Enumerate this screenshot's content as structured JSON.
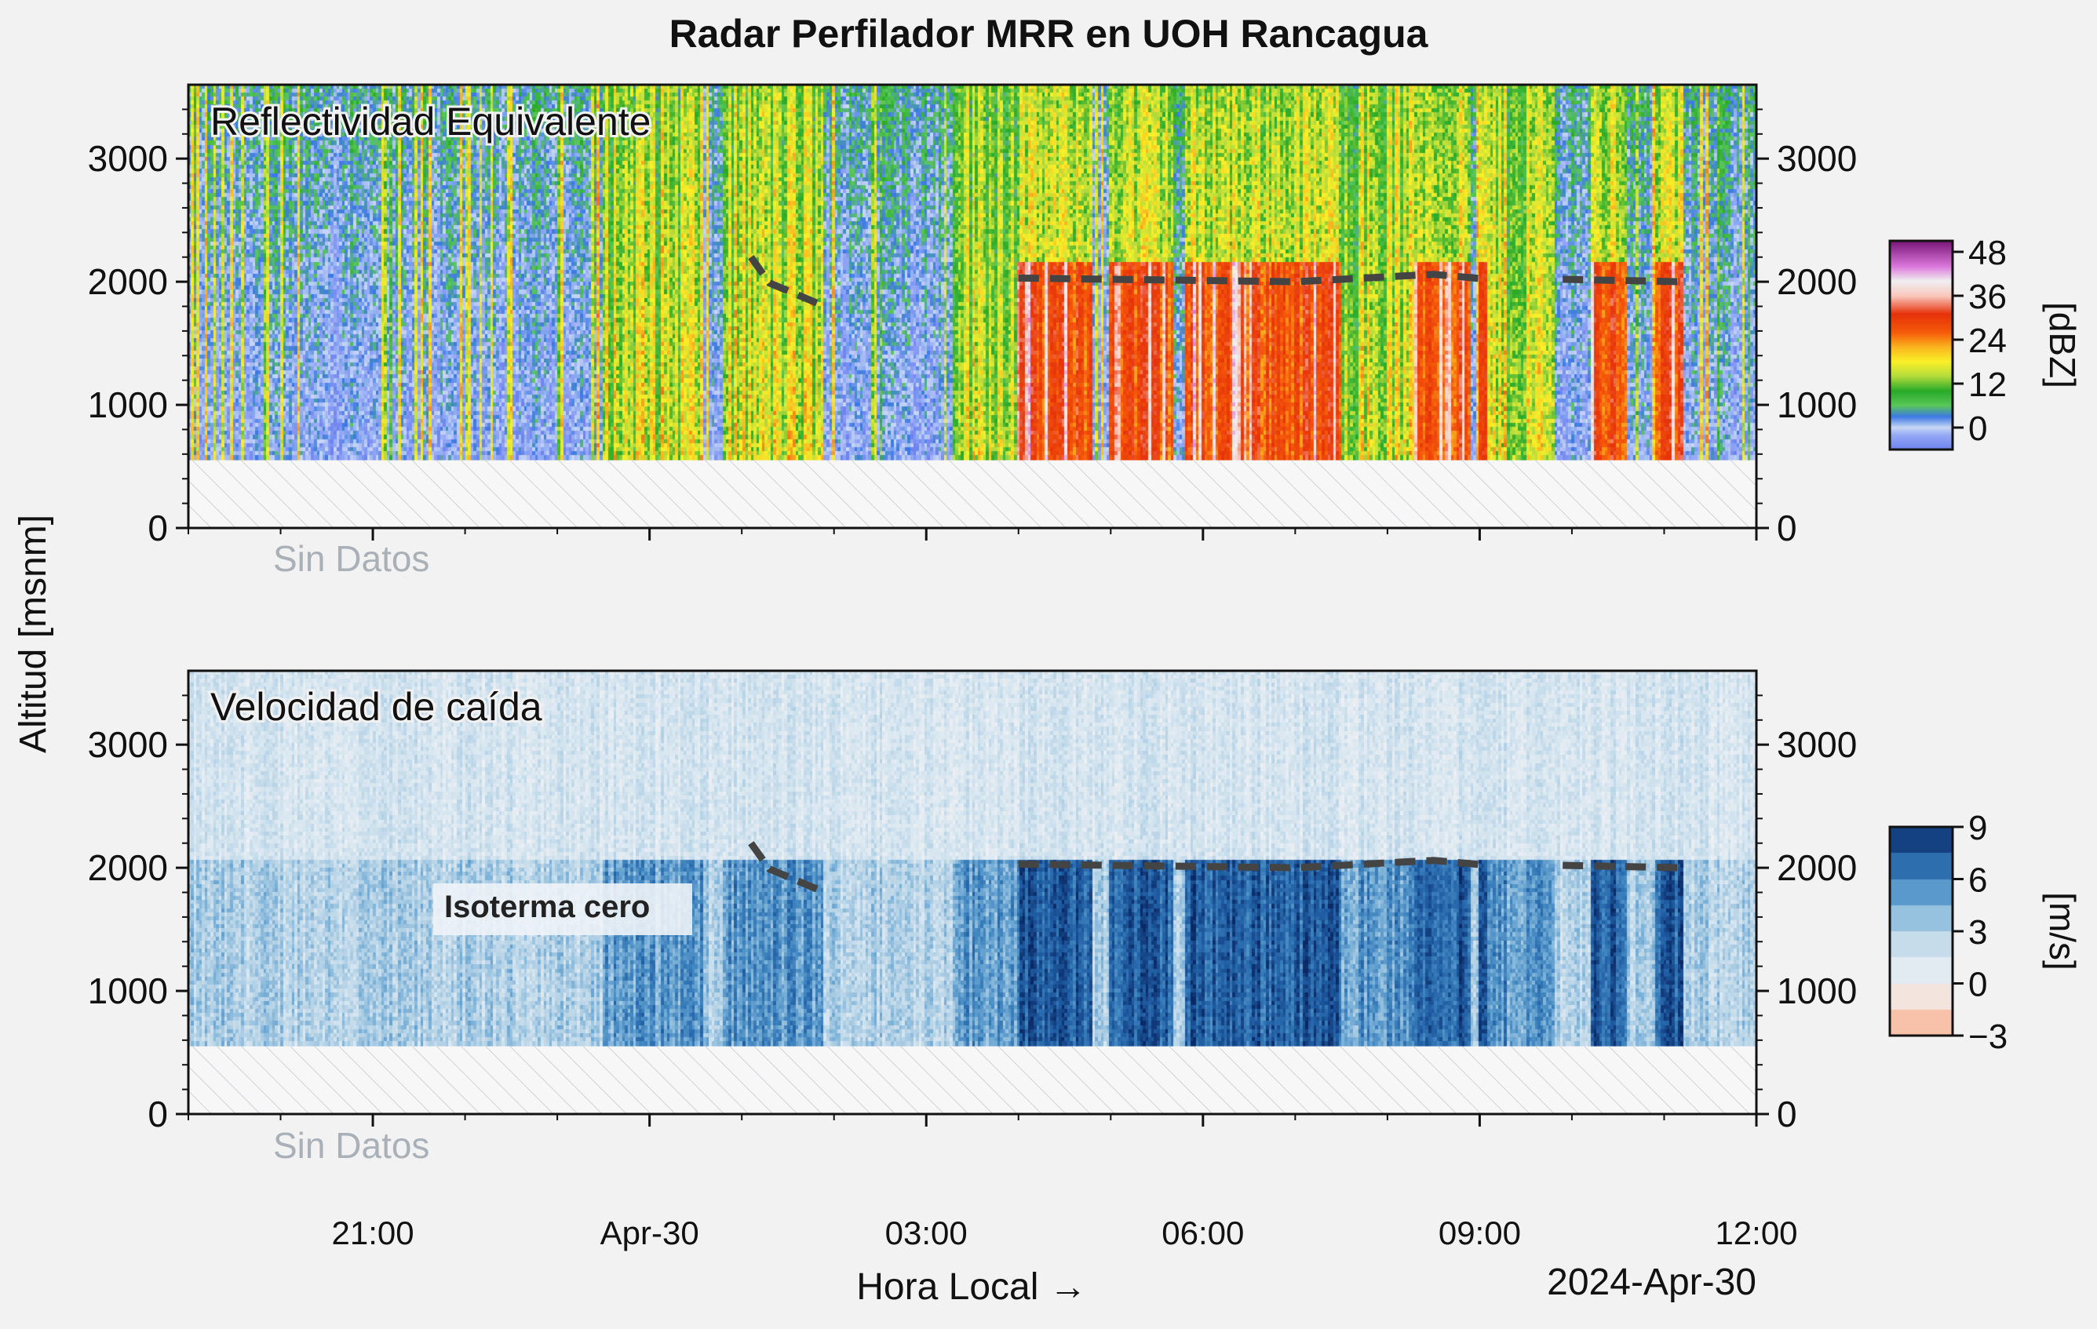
{
  "chart_data": [
    {
      "type": "heatmap",
      "title": "Radar Perfilador MRR en UOH Rancagua",
      "panel_label": "Reflectividad Equivalente",
      "field": "Reflectividad Equivalente",
      "ylabel": "Altitud [msnm]",
      "xlabel": "Hora Local →",
      "date_label": "2024-Apr-30",
      "x_range_hours": [
        -5,
        12
      ],
      "ylim": [
        0,
        3600
      ],
      "y_ticks": [
        0,
        1000,
        2000,
        3000
      ],
      "y_tick_labels": [
        "0",
        "1000",
        "2000",
        "3000"
      ],
      "x_ticks_hours": [
        -3,
        0,
        3,
        6,
        9,
        12
      ],
      "x_tick_labels": [
        "21:00",
        "Apr-30",
        "03:00",
        "06:00",
        "09:00",
        "12:00"
      ],
      "no_data_below_m": 550,
      "no_data_label": "Sin Datos",
      "colorbar": {
        "label": "[dBZ]",
        "ticks": [
          0,
          12,
          24,
          36,
          48
        ],
        "tick_labels": [
          "0",
          "12",
          "24",
          "36",
          "48"
        ],
        "range": [
          -6,
          51
        ]
      },
      "isotherm_segments": [
        [
          [
            1.1,
            2200
          ],
          [
            1.3,
            1990
          ],
          [
            1.9,
            1800
          ]
        ],
        [
          [
            4.0,
            2030
          ],
          [
            6.0,
            2010
          ],
          [
            7.0,
            2000
          ],
          [
            8.5,
            2060
          ],
          [
            9.1,
            2020
          ]
        ],
        [
          [
            9.9,
            2020
          ],
          [
            11.2,
            2000
          ]
        ]
      ]
    },
    {
      "type": "heatmap",
      "panel_label": "Velocidad de caída",
      "field": "Velocidad de caída",
      "ylabel": "Altitud [msnm]",
      "xlabel": "Hora Local →",
      "date_label": "2024-Apr-30",
      "x_range_hours": [
        -5,
        12
      ],
      "ylim": [
        0,
        3600
      ],
      "y_ticks": [
        0,
        1000,
        2000,
        3000
      ],
      "y_tick_labels": [
        "0",
        "1000",
        "2000",
        "3000"
      ],
      "x_ticks_hours": [
        -3,
        0,
        3,
        6,
        9,
        12
      ],
      "x_tick_labels": [
        "21:00",
        "Apr-30",
        "03:00",
        "06:00",
        "09:00",
        "12:00"
      ],
      "no_data_below_m": 550,
      "no_data_label": "Sin Datos",
      "annotation": "Isoterma cero",
      "colorbar": {
        "label": "[m/s]",
        "ticks": [
          -3,
          0,
          3,
          6,
          9
        ],
        "tick_labels": [
          "−3",
          "0",
          "3",
          "6",
          "9"
        ],
        "range": [
          -3,
          9
        ]
      },
      "isotherm_segments": [
        [
          [
            1.1,
            2200
          ],
          [
            1.3,
            1990
          ],
          [
            1.9,
            1800
          ]
        ],
        [
          [
            4.0,
            2030
          ],
          [
            6.0,
            2010
          ],
          [
            7.0,
            2000
          ],
          [
            8.5,
            2060
          ],
          [
            9.1,
            2020
          ]
        ],
        [
          [
            9.9,
            2020
          ],
          [
            11.2,
            2000
          ]
        ]
      ]
    }
  ],
  "colors": {
    "background": "#f2f2f2",
    "isotherm": "#444444",
    "no_data_fill": "#f7f7f7",
    "no_data_hatch": "#cfd3d8",
    "no_data_text": "#a9b0b8"
  }
}
